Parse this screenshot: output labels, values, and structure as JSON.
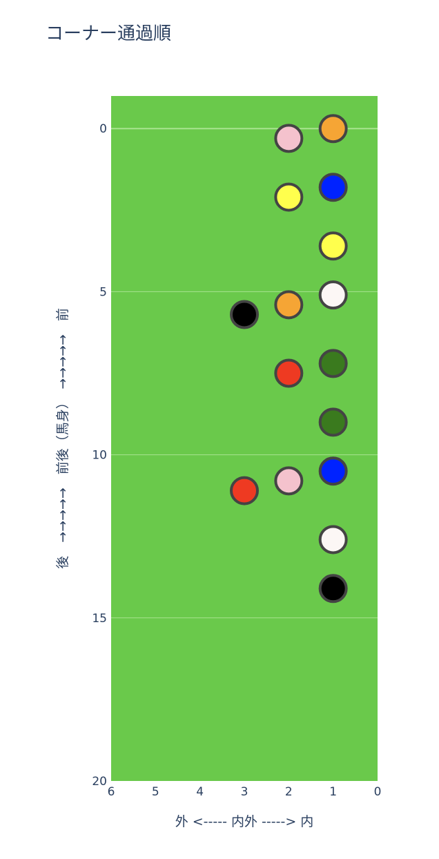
{
  "chart_data": {
    "type": "scatter",
    "title": "コーナー通過順",
    "xlabel": "外 <-----  内外  -----> 内",
    "ylabel": "後　→→→→→　前後（馬身）　→→→→→　前",
    "xlim": [
      6,
      0
    ],
    "ylim": [
      20,
      -1
    ],
    "x_ticks": [
      6,
      5,
      4,
      3,
      2,
      1,
      0
    ],
    "y_ticks": [
      0,
      5,
      10,
      15,
      20
    ],
    "grid": true,
    "colors": {
      "plot_background": "#6ac94b",
      "gridline": "#a8e490",
      "marker_outline": "#444444",
      "text": "#2a3f5f"
    },
    "points": [
      {
        "x": 1,
        "y": 0.0,
        "color": "#f5a535"
      },
      {
        "x": 2,
        "y": 0.3,
        "color": "#f4c2cd"
      },
      {
        "x": 1,
        "y": 1.8,
        "color": "#0022ff"
      },
      {
        "x": 2,
        "y": 2.1,
        "color": "#ffff4d"
      },
      {
        "x": 1,
        "y": 3.6,
        "color": "#ffff4d"
      },
      {
        "x": 1,
        "y": 5.1,
        "color": "#fcf7f5"
      },
      {
        "x": 2,
        "y": 5.4,
        "color": "#f5a535"
      },
      {
        "x": 3,
        "y": 5.7,
        "color": "#000000"
      },
      {
        "x": 1,
        "y": 7.2,
        "color": "#3a7a1e"
      },
      {
        "x": 2,
        "y": 7.5,
        "color": "#ee3a22"
      },
      {
        "x": 1,
        "y": 9.0,
        "color": "#3a7a1e"
      },
      {
        "x": 1,
        "y": 10.5,
        "color": "#0022ff"
      },
      {
        "x": 2,
        "y": 10.8,
        "color": "#f4c2cd"
      },
      {
        "x": 3,
        "y": 11.1,
        "color": "#ee3a22"
      },
      {
        "x": 1,
        "y": 12.6,
        "color": "#fcf7f5"
      },
      {
        "x": 1,
        "y": 14.1,
        "color": "#000000"
      }
    ]
  }
}
